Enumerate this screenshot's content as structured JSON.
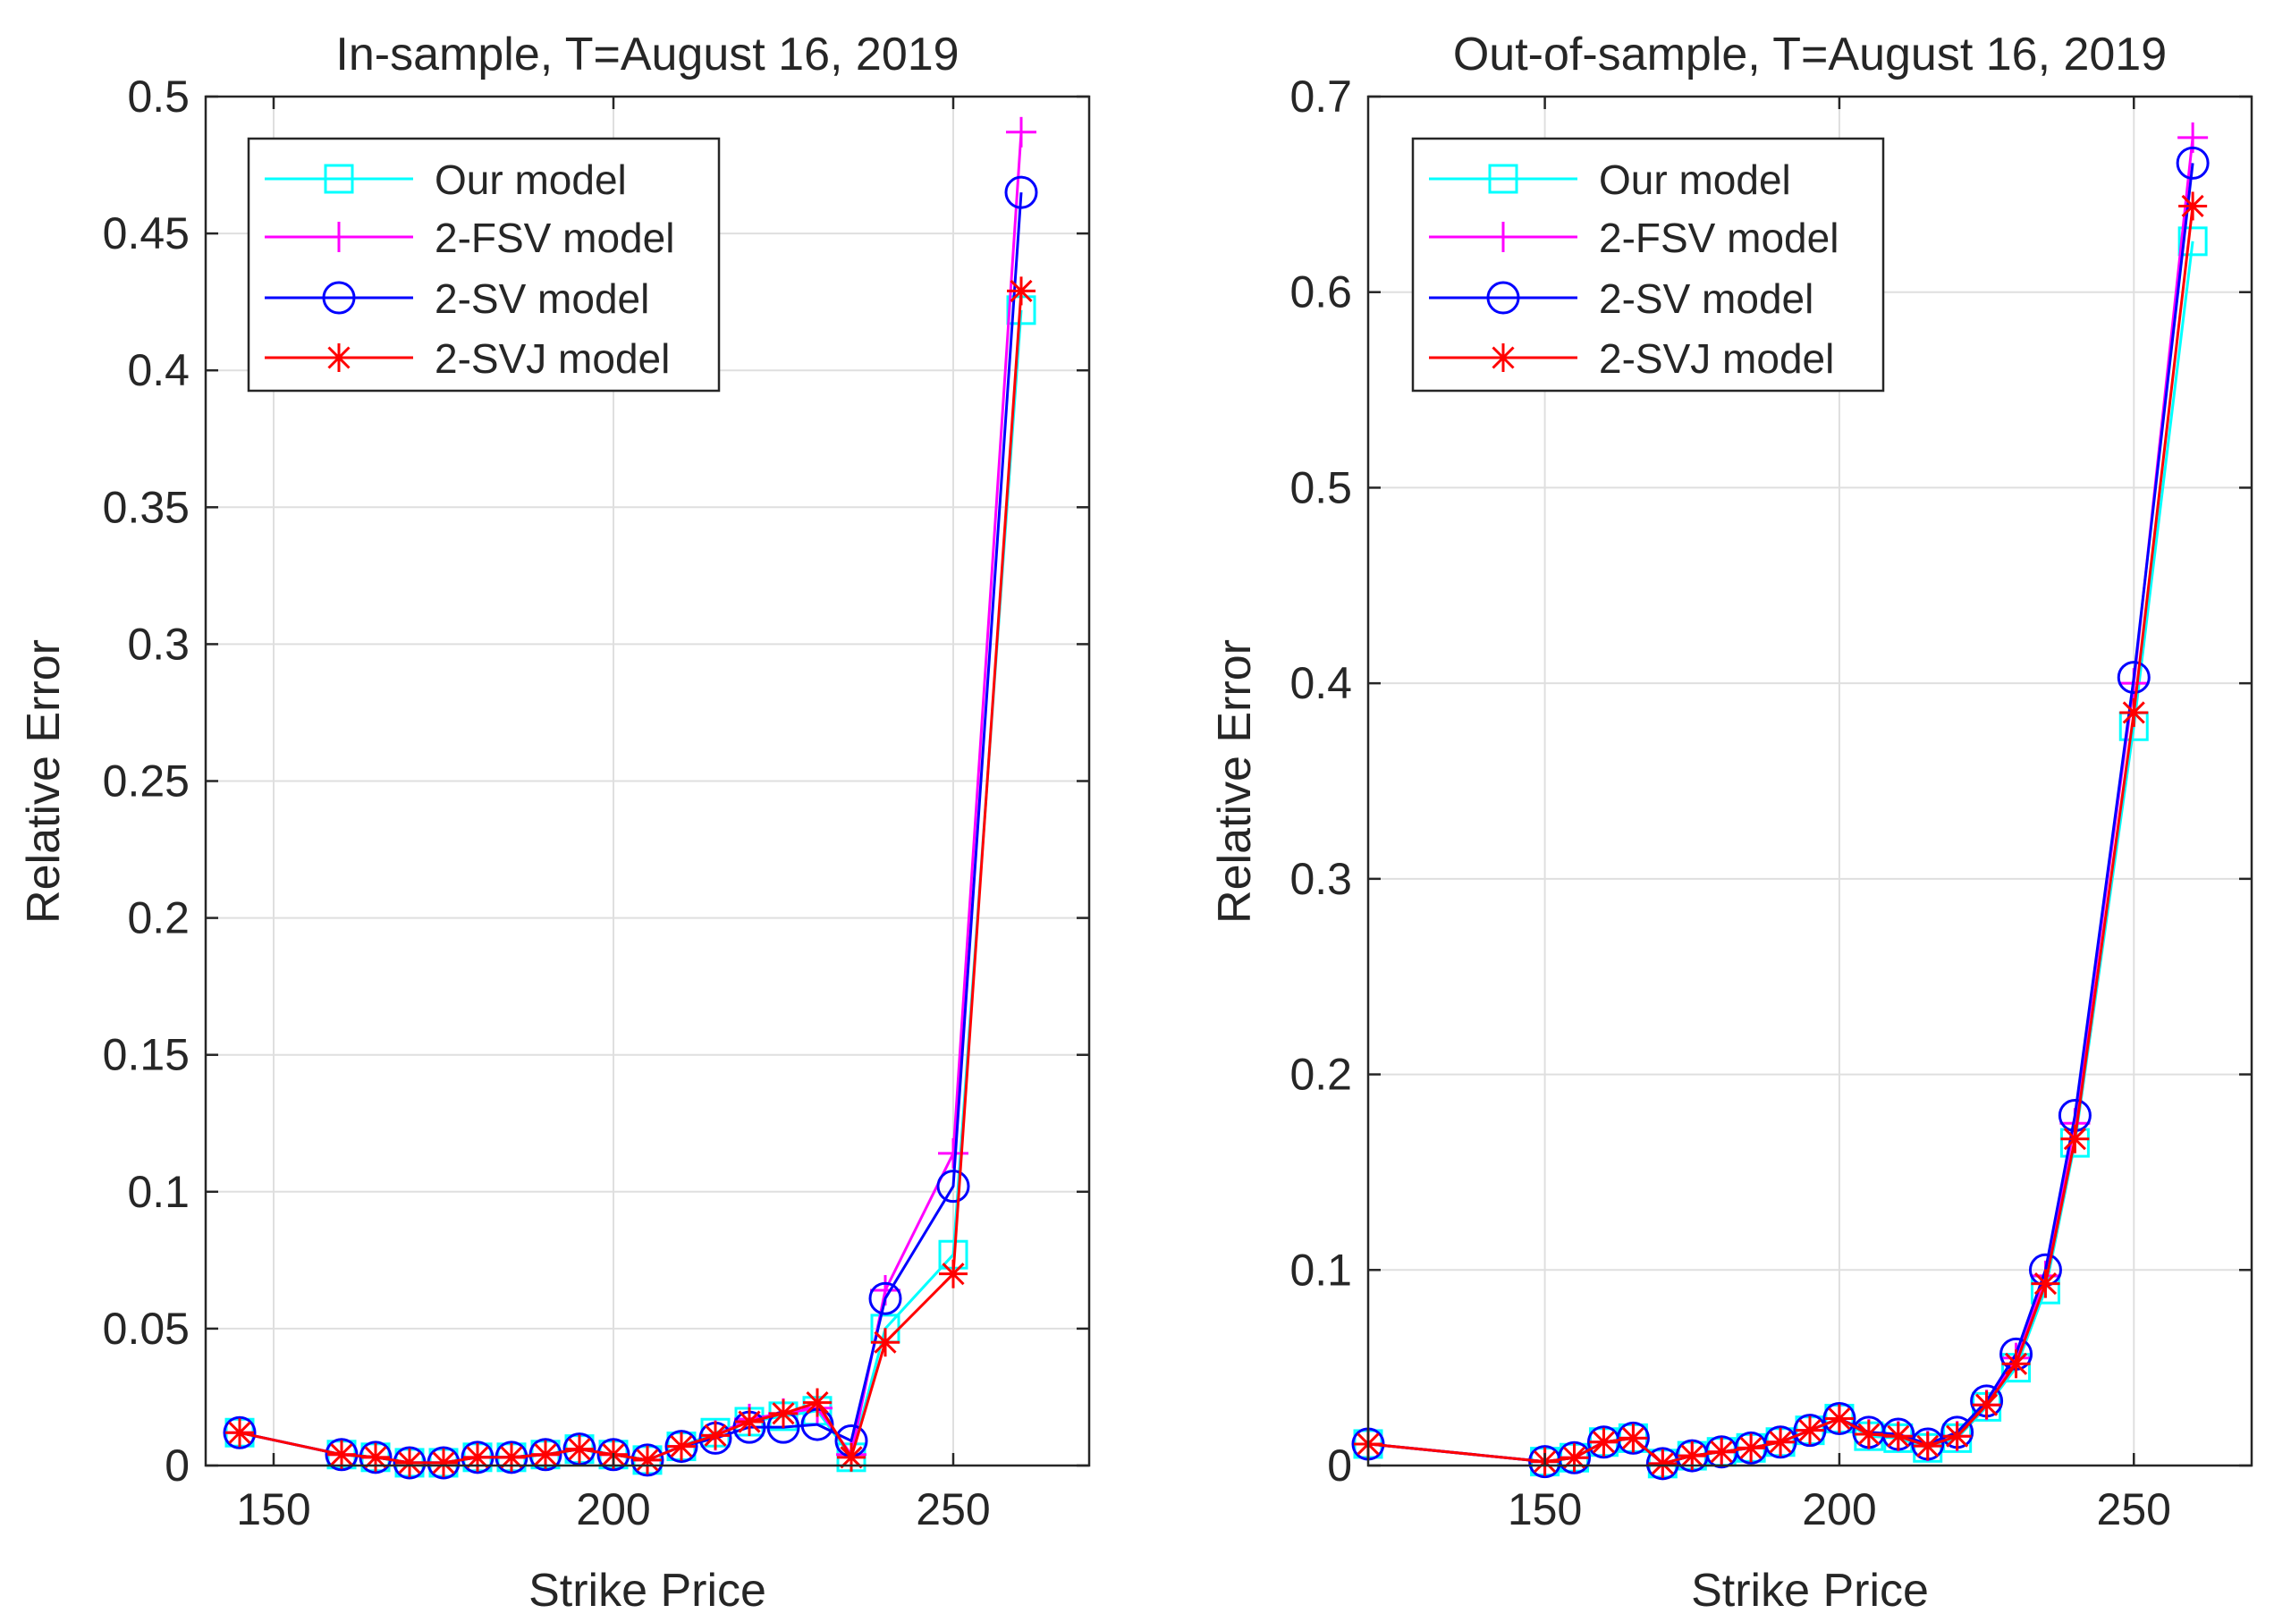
{
  "chart_data": [
    {
      "type": "line",
      "title": "In-sample, T=August 16, 2019",
      "xlabel": "Strike Price",
      "ylabel": "Relative Error",
      "xlim": [
        140,
        270
      ],
      "ylim": [
        0,
        0.5
      ],
      "xticks": [
        150,
        200,
        250
      ],
      "xtick_labels": [
        "150",
        "200",
        "250"
      ],
      "yticks": [
        0,
        0.05,
        0.1,
        0.15,
        0.2,
        0.25,
        0.3,
        0.35,
        0.4,
        0.45,
        0.5
      ],
      "ytick_labels": [
        "0",
        "0.05",
        "0.1",
        "0.15",
        "0.2",
        "0.25",
        "0.3",
        "0.35",
        "0.4",
        "0.45",
        "0.5"
      ],
      "grid": true,
      "legend_position": "top-left",
      "series": [
        {
          "name": "Our model",
          "color": "#00ffff",
          "marker": "square",
          "x": [
            145,
            160,
            165,
            170,
            175,
            180,
            185,
            190,
            195,
            200,
            205,
            210,
            215,
            220,
            225,
            230,
            235,
            240,
            250,
            260
          ],
          "y": [
            0.012,
            0.004,
            0.003,
            0.001,
            0.001,
            0.003,
            0.003,
            0.004,
            0.006,
            0.004,
            0.002,
            0.007,
            0.012,
            0.016,
            0.018,
            0.02,
            0.003,
            0.05,
            0.077,
            0.422
          ]
        },
        {
          "name": "2-FSV model",
          "color": "#ff00ff",
          "marker": "plus",
          "x": [
            145,
            160,
            165,
            170,
            175,
            180,
            185,
            190,
            195,
            200,
            205,
            210,
            215,
            220,
            225,
            230,
            235,
            240,
            250,
            260
          ],
          "y": [
            0.012,
            0.004,
            0.003,
            0.001,
            0.001,
            0.003,
            0.003,
            0.004,
            0.006,
            0.004,
            0.002,
            0.007,
            0.011,
            0.017,
            0.019,
            0.021,
            0.004,
            0.064,
            0.114,
            0.487
          ]
        },
        {
          "name": "2-SV model",
          "color": "#0000ff",
          "marker": "circle",
          "x": [
            145,
            160,
            165,
            170,
            175,
            180,
            185,
            190,
            195,
            200,
            205,
            210,
            215,
            220,
            225,
            230,
            235,
            240,
            250,
            260
          ],
          "y": [
            0.012,
            0.004,
            0.003,
            0.001,
            0.001,
            0.003,
            0.003,
            0.004,
            0.006,
            0.004,
            0.002,
            0.007,
            0.01,
            0.014,
            0.014,
            0.015,
            0.009,
            0.061,
            0.102,
            0.465
          ]
        },
        {
          "name": "2-SVJ model",
          "color": "#ff0000",
          "marker": "asterisk",
          "x": [
            145,
            160,
            165,
            170,
            175,
            180,
            185,
            190,
            195,
            200,
            205,
            210,
            215,
            220,
            225,
            230,
            235,
            240,
            250,
            260
          ],
          "y": [
            0.012,
            0.004,
            0.003,
            0.001,
            0.001,
            0.003,
            0.003,
            0.004,
            0.006,
            0.004,
            0.002,
            0.007,
            0.011,
            0.016,
            0.019,
            0.023,
            0.003,
            0.045,
            0.07,
            0.429
          ]
        }
      ]
    },
    {
      "type": "line",
      "title": "Out-of-sample, T=August 16, 2019",
      "xlabel": "Strike Price",
      "ylabel": "Relative Error",
      "xlim": [
        120,
        270
      ],
      "ylim": [
        0,
        0.7
      ],
      "xticks": [
        150,
        200,
        250
      ],
      "xtick_labels": [
        "150",
        "200",
        "250"
      ],
      "yticks": [
        0,
        0.1,
        0.2,
        0.3,
        0.4,
        0.5,
        0.6,
        0.7
      ],
      "ytick_labels": [
        "0",
        "0.1",
        "0.2",
        "0.3",
        "0.4",
        "0.5",
        "0.6",
        "0.7"
      ],
      "grid": true,
      "legend_position": "top-left",
      "series": [
        {
          "name": "Our model",
          "color": "#00ffff",
          "marker": "square",
          "x": [
            120,
            150,
            155,
            160,
            165,
            170,
            175,
            180,
            185,
            190,
            195,
            200,
            205,
            210,
            215,
            220,
            225,
            230,
            235,
            240,
            250,
            260
          ],
          "y": [
            0.011,
            0.002,
            0.004,
            0.012,
            0.014,
            0.001,
            0.005,
            0.007,
            0.009,
            0.012,
            0.018,
            0.024,
            0.015,
            0.014,
            0.009,
            0.014,
            0.03,
            0.05,
            0.09,
            0.165,
            0.378,
            0.626
          ]
        },
        {
          "name": "2-FSV model",
          "color": "#ff00ff",
          "marker": "plus",
          "x": [
            120,
            150,
            155,
            160,
            165,
            170,
            175,
            180,
            185,
            190,
            195,
            200,
            205,
            210,
            215,
            220,
            225,
            230,
            235,
            240,
            250,
            260
          ],
          "y": [
            0.011,
            0.002,
            0.004,
            0.012,
            0.014,
            0.001,
            0.005,
            0.007,
            0.009,
            0.012,
            0.018,
            0.024,
            0.016,
            0.015,
            0.01,
            0.015,
            0.031,
            0.055,
            0.097,
            0.175,
            0.4,
            0.679
          ]
        },
        {
          "name": "2-SV model",
          "color": "#0000ff",
          "marker": "circle",
          "x": [
            120,
            150,
            155,
            160,
            165,
            170,
            175,
            180,
            185,
            190,
            195,
            200,
            205,
            210,
            215,
            220,
            225,
            230,
            235,
            240,
            250,
            260
          ],
          "y": [
            0.011,
            0.002,
            0.004,
            0.012,
            0.014,
            0.001,
            0.005,
            0.007,
            0.009,
            0.012,
            0.018,
            0.024,
            0.017,
            0.016,
            0.011,
            0.017,
            0.033,
            0.057,
            0.1,
            0.179,
            0.403,
            0.666
          ]
        },
        {
          "name": "2-SVJ model",
          "color": "#ff0000",
          "marker": "asterisk",
          "x": [
            120,
            150,
            155,
            160,
            165,
            170,
            175,
            180,
            185,
            190,
            195,
            200,
            205,
            210,
            215,
            220,
            225,
            230,
            235,
            240,
            250,
            260
          ],
          "y": [
            0.011,
            0.002,
            0.004,
            0.012,
            0.014,
            0.001,
            0.005,
            0.007,
            0.009,
            0.012,
            0.018,
            0.024,
            0.016,
            0.015,
            0.01,
            0.015,
            0.031,
            0.052,
            0.093,
            0.167,
            0.385,
            0.644
          ]
        }
      ]
    }
  ]
}
